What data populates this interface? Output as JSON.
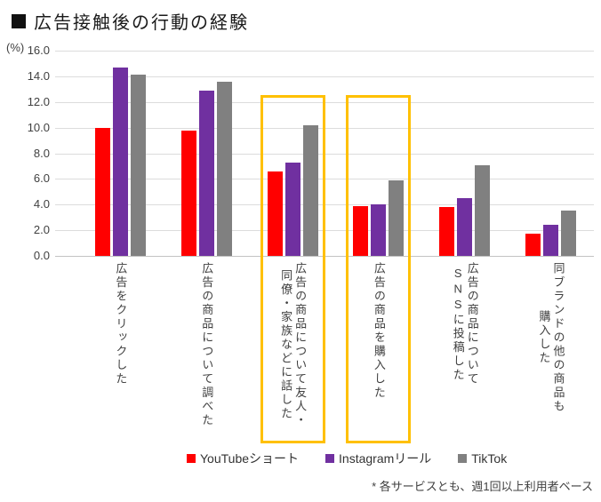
{
  "title": "広告接触後の行動の経験",
  "y_axis": {
    "unit": "(%)",
    "ticks": [
      "16.0",
      "14.0",
      "12.0",
      "10.0",
      "8.0",
      "6.0",
      "4.0",
      "2.0",
      "0.0"
    ],
    "max": 16.0,
    "min": 0.0
  },
  "chart_data": {
    "type": "bar",
    "title": "広告接触後の行動の経験",
    "ylabel": "(%)",
    "ylim": [
      0,
      16
    ],
    "grid": true,
    "legend_position": "bottom",
    "categories": [
      "広告をクリックした",
      "広告の商品について調べた",
      "広告の商品について友人・\n同僚・家族などに話した",
      "広告の商品を購入した",
      "広告の商品について\nSNSに投稿した",
      "同ブランドの他の商品も\n購入した"
    ],
    "series": [
      {
        "name": "YouTubeショート",
        "color": "#FF0000",
        "values": [
          10.0,
          9.8,
          6.6,
          3.9,
          3.8,
          1.7
        ]
      },
      {
        "name": "Instagramリール",
        "color": "#7030A0",
        "values": [
          14.7,
          12.9,
          7.3,
          4.0,
          4.5,
          2.4
        ]
      },
      {
        "name": "TikTok",
        "color": "#808080",
        "values": [
          14.1,
          13.6,
          10.2,
          5.9,
          7.1,
          3.5
        ]
      }
    ],
    "highlighted_categories": [
      2,
      3
    ],
    "highlight_color": "#FFC000"
  },
  "legend": [
    {
      "label": "YouTubeショート",
      "color": "#FF0000"
    },
    {
      "label": "Instagramリール",
      "color": "#7030A0"
    },
    {
      "label": "TikTok",
      "color": "#808080"
    }
  ],
  "footnote": "* 各サービスとも、週1回以上利用者ベース"
}
